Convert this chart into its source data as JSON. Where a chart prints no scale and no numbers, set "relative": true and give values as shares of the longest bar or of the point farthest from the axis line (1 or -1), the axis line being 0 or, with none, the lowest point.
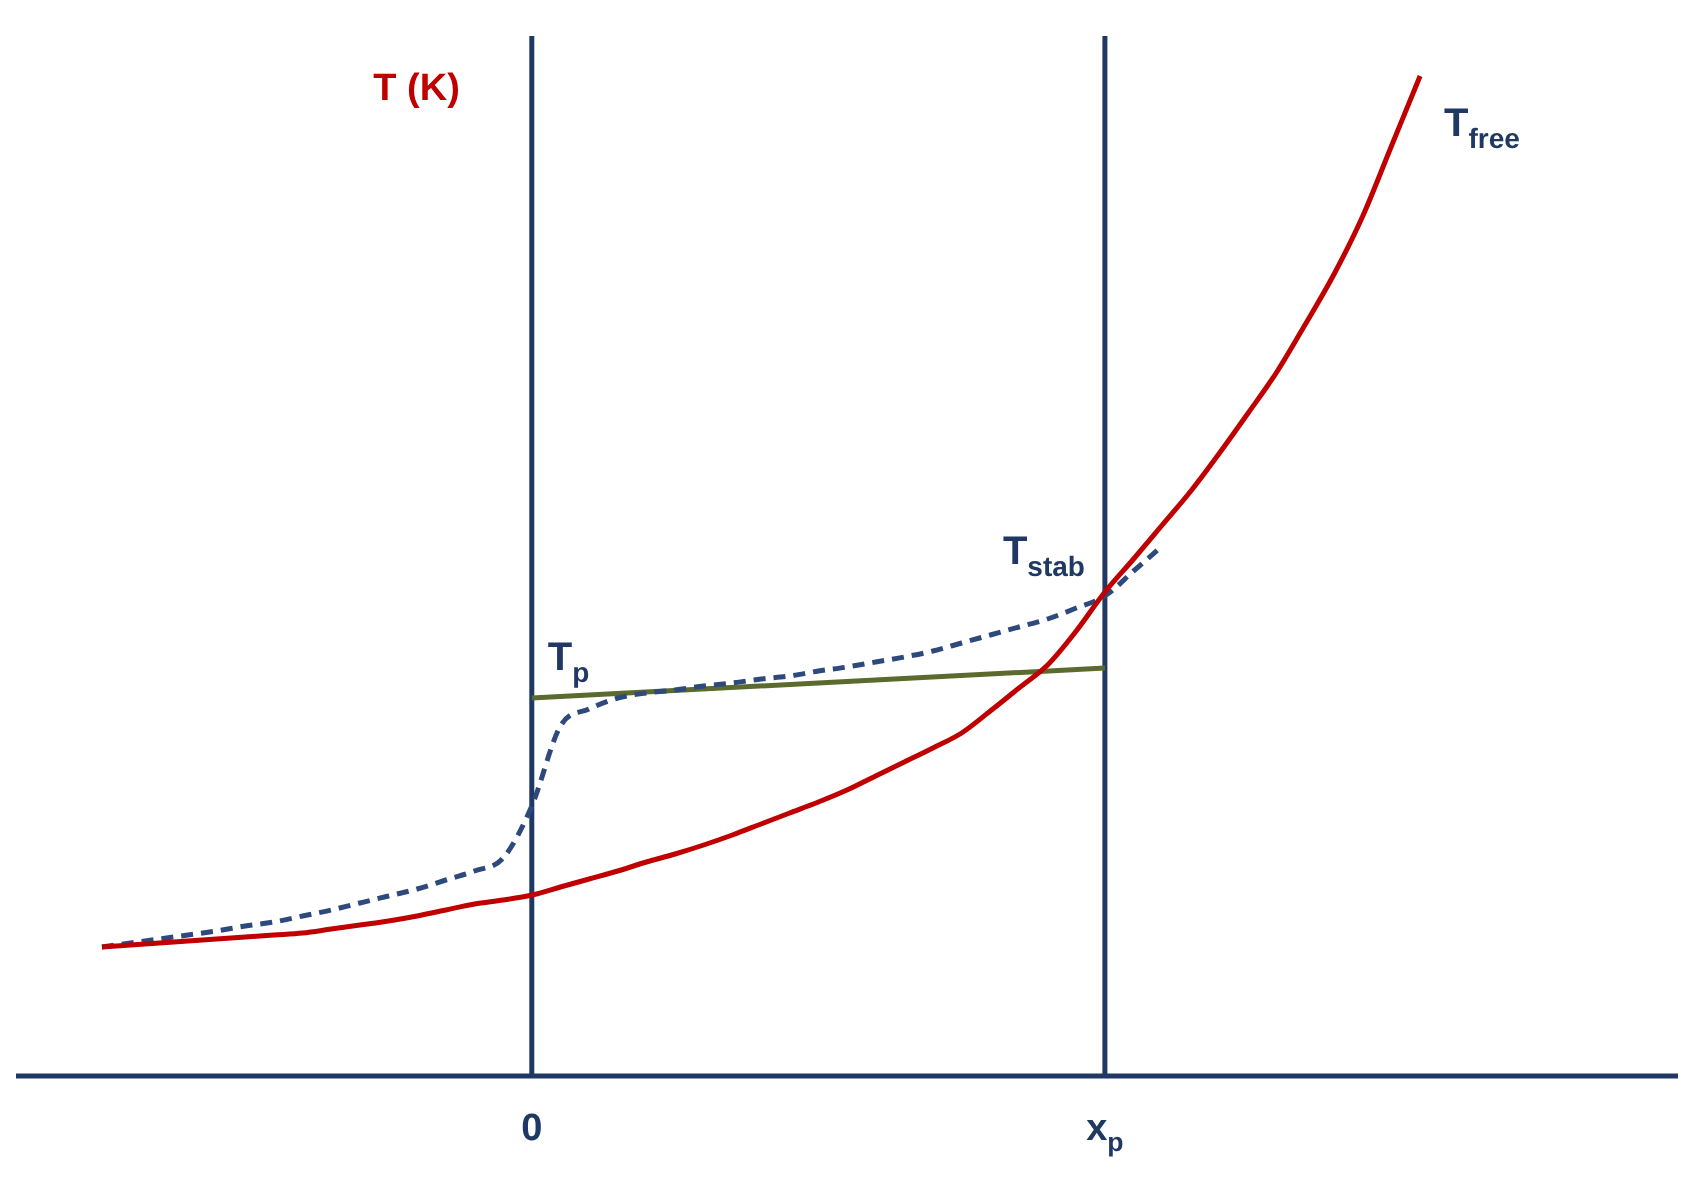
{
  "chart_data": {
    "type": "line",
    "relative": true,
    "ylabel": "T (K)",
    "grid": false,
    "legend": false,
    "marker": "none",
    "tick_labels": "x",
    "categories": [
      null,
      null,
      null,
      null,
      null,
      null,
      null,
      null,
      null,
      null,
      null,
      null,
      null,
      null,
      null,
      null,
      null,
      null,
      "0",
      null,
      null,
      null,
      null,
      null,
      null,
      null,
      null,
      null,
      null,
      null,
      null,
      null,
      null,
      null,
      null,
      null,
      null,
      null,
      "x$_{p}$",
      null,
      null,
      null,
      null,
      null,
      null,
      null,
      null,
      null,
      null,
      null,
      null,
      null,
      null,
      null,
      null,
      null,
      null,
      null,
      null
    ],
    "ref_lines": [
      {
        "axis": "x",
        "value": "0",
        "color": "#1f3864",
        "line_style": "solid"
      },
      {
        "axis": "x",
        "value": "x$_{p}$",
        "color": "#1f3864",
        "line_style": "solid"
      }
    ],
    "series": [
      {
        "name": "T$_{free}$",
        "color": "#c00000",
        "line_style": "solid",
        "values": [
          null,
          null,
          null,
          0.129,
          0.131,
          0.133,
          0.135,
          0.137,
          0.139,
          0.141,
          0.143,
          0.147,
          0.151,
          0.155,
          0.16,
          0.166,
          0.172,
          0.176,
          0.181,
          0.189,
          0.197,
          0.205,
          0.214,
          0.222,
          0.231,
          0.241,
          0.252,
          0.263,
          0.274,
          0.286,
          0.3,
          0.314,
          0.328,
          0.343,
          0.365,
          0.388,
          0.411,
          0.445,
          0.484,
          0.517,
          0.551,
          0.585,
          0.623,
          0.663,
          0.704,
          0.752,
          0.802,
          0.86,
          0.93,
          1.0,
          null,
          null,
          null,
          null,
          null,
          null,
          null,
          null,
          null
        ]
      },
      {
        "name": "T$_{stab}$",
        "color": "#2e4a7d",
        "line_style": "dashed",
        "values": [
          null,
          null,
          null,
          0.129,
          0.133,
          0.137,
          0.141,
          0.145,
          0.15,
          0.154,
          0.16,
          0.166,
          0.173,
          0.18,
          0.187,
          0.196,
          0.205,
          0.218,
          0.27,
          0.35,
          0.367,
          0.378,
          0.383,
          0.386,
          0.39,
          0.393,
          0.397,
          0.4,
          0.405,
          0.409,
          0.414,
          0.419,
          0.425,
          0.433,
          0.441,
          0.449,
          0.457,
          0.468,
          0.48,
          0.505,
          0.53,
          null,
          null,
          null,
          null,
          null,
          null,
          null,
          null,
          null,
          null,
          null,
          null,
          null,
          null,
          null,
          null,
          null,
          null
        ]
      },
      {
        "name": "T$_{p}$",
        "color": "#5b6b2e",
        "line_style": "solid",
        "values": [
          null,
          null,
          null,
          null,
          null,
          null,
          null,
          null,
          null,
          null,
          null,
          null,
          null,
          null,
          null,
          null,
          null,
          null,
          0.378,
          null,
          null,
          null,
          null,
          null,
          null,
          null,
          null,
          null,
          null,
          null,
          null,
          null,
          null,
          null,
          null,
          null,
          null,
          null,
          0.408,
          null,
          null,
          null,
          null,
          null,
          null,
          null,
          null,
          null,
          null,
          null,
          null,
          null,
          null,
          null,
          null,
          null,
          null,
          null,
          null
        ]
      }
    ]
  }
}
